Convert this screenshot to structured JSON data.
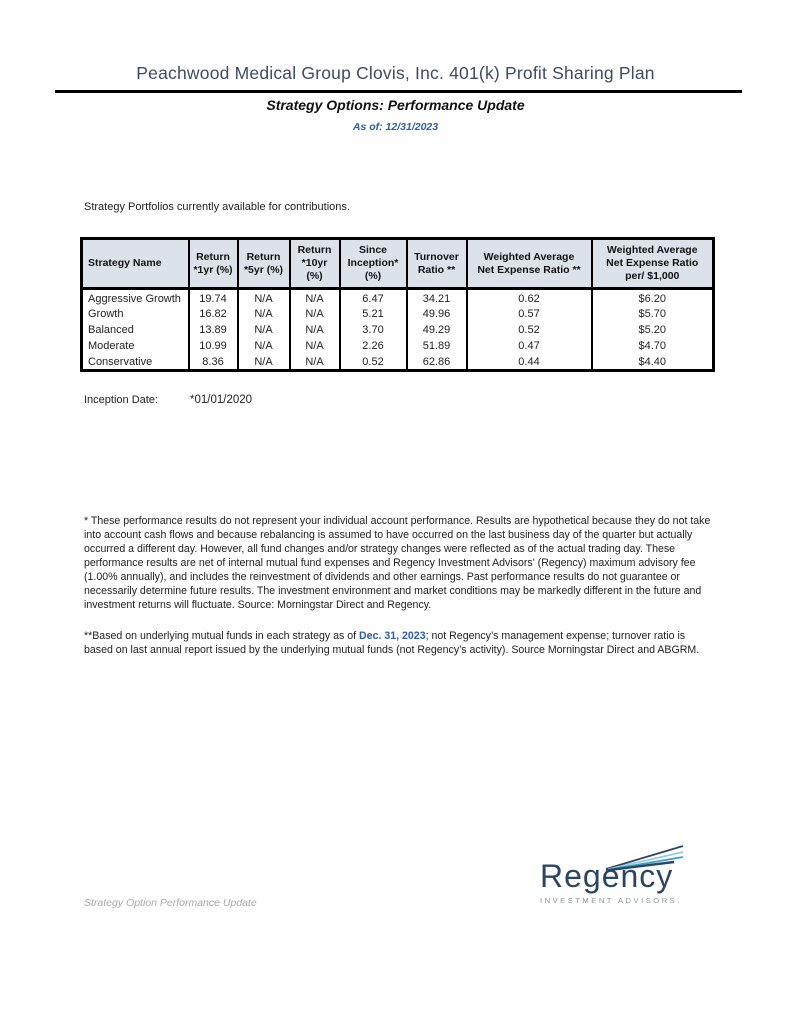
{
  "page": {
    "title": "Peachwood Medical Group Clovis, Inc. 401(k) Profit Sharing Plan",
    "subtitle": "Strategy Options: Performance Update",
    "as_of": "As of: 12/31/2023",
    "intro": "Strategy Portfolios currently available for contributions.",
    "footer": "Strategy Option Performance Update"
  },
  "table": {
    "columns": [
      "Strategy Name",
      "Return\n*1yr (%)",
      "Return\n*5yr (%)",
      "Return\n*10yr (%)",
      "Since\nInception* (%)",
      "Turnover\nRatio **",
      "Weighted Average\nNet Expense Ratio **",
      "Weighted Average\nNet Expense Ratio\nper/ $1,000"
    ],
    "rows": [
      {
        "name": "Aggressive Growth",
        "values": [
          "19.74",
          "N/A",
          "N/A",
          "6.47",
          "34.21",
          "0.62",
          "$6.20"
        ]
      },
      {
        "name": "Growth",
        "values": [
          "16.82",
          "N/A",
          "N/A",
          "5.21",
          "49.96",
          "0.57",
          "$5.70"
        ]
      },
      {
        "name": "Balanced",
        "values": [
          "13.89",
          "N/A",
          "N/A",
          "3.70",
          "49.29",
          "0.52",
          "$5.20"
        ]
      },
      {
        "name": "Moderate",
        "values": [
          "10.99",
          "N/A",
          "N/A",
          "2.26",
          "51.89",
          "0.47",
          "$4.70"
        ]
      },
      {
        "name": "Conservative",
        "values": [
          "8.36",
          "N/A",
          "N/A",
          "0.52",
          "62.86",
          "0.44",
          "$4.40"
        ]
      }
    ]
  },
  "inception": {
    "label": "Inception Date:",
    "value": "*01/01/2020"
  },
  "footnotes": {
    "para1": "* These performance results do not represent your individual account performance.  Results are hypothetical because they do not take into account cash flows and because rebalancing is assumed to have occurred on the last business day of the quarter but actually occurred a different day. However, all fund changes and/or strategy changes were reflected as of the actual trading day. These performance results are net of internal mutual fund expenses and Regency Investment Advisors' (Regency) maximum advisory fee (1.00% annually), and includes the reinvestment of dividends and other earnings.  Past performance results do not guarantee or necessarily determine future results.  The investment environment and market conditions may be markedly different in the future and investment returns will fluctuate. Source: Morningstar Direct and Regency.",
    "para2_before": "**Based on underlying mutual funds in each strategy as of ",
    "para2_date": "Dec. 31, 2023",
    "para2_after": "; not Regency’s management expense; turnover ratio is based on last annual report  issued by the underlying mutual funds (not Regency’s activity). Source Morningstar Direct and ABGRM."
  },
  "logo": {
    "wordmark": "Regency",
    "tagline": "INVESTMENT ADVISORS."
  },
  "colors": {
    "title_navy": "#3d4d61",
    "accent_blue": "#2d5fa6",
    "table_header_bg": "#dbe2e9",
    "logo_navy": "#2c4563",
    "logo_teal": "#3f9fc6",
    "logo_light_blue": "#8ecde5",
    "footer_gray": "#a9a9a9"
  }
}
